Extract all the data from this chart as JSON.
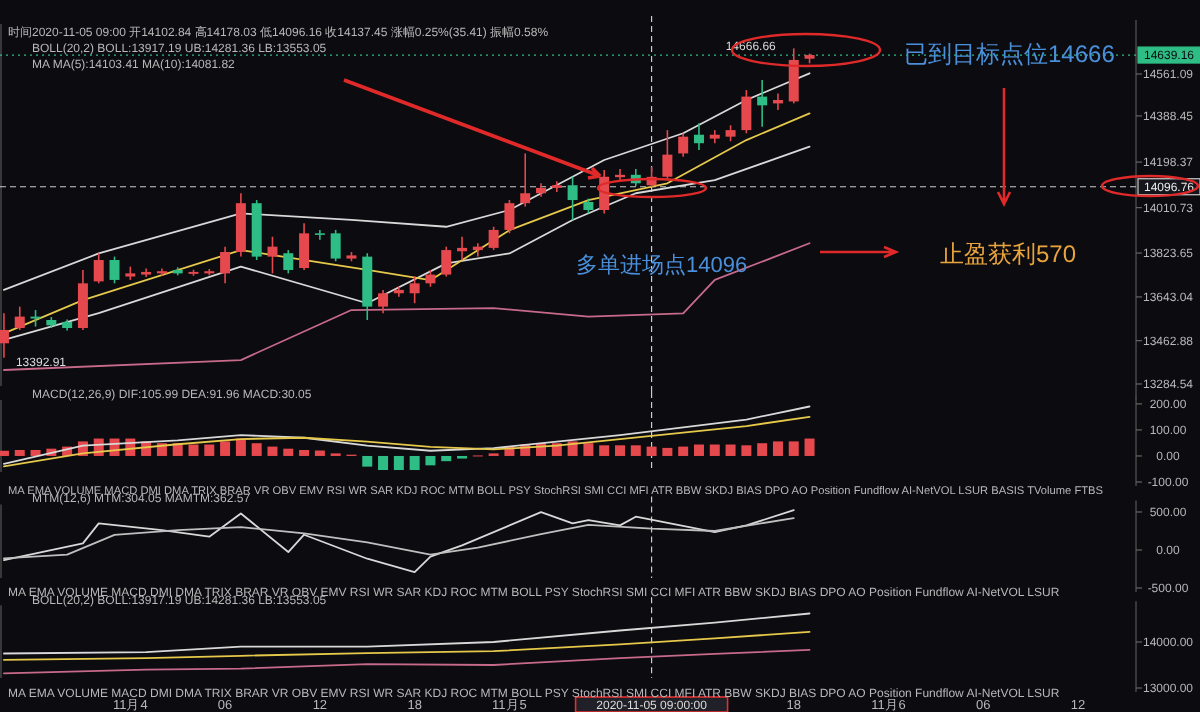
{
  "chart_data": [
    {
      "type": "candlestick",
      "tick_labels": "y",
      "grid": false,
      "x": [
        "2020-11-03T16:00",
        "2020-11-03T17:00",
        "2020-11-03T18:00",
        "2020-11-03T19:00",
        "2020-11-03T20:00",
        "2020-11-03T21:00",
        "2020-11-03T22:00",
        "2020-11-03T23:00",
        "2020-11-04T00:00",
        "2020-11-04T01:00",
        "2020-11-04T02:00",
        "2020-11-04T03:00",
        "2020-11-04T04:00",
        "2020-11-04T05:00",
        "2020-11-04T06:00",
        "2020-11-04T07:00",
        "2020-11-04T08:00",
        "2020-11-04T09:00",
        "2020-11-04T10:00",
        "2020-11-04T11:00",
        "2020-11-04T12:00",
        "2020-11-04T13:00",
        "2020-11-04T14:00",
        "2020-11-04T15:00",
        "2020-11-04T16:00",
        "2020-11-04T17:00",
        "2020-11-04T18:00",
        "2020-11-04T19:00",
        "2020-11-04T20:00",
        "2020-11-04T21:00",
        "2020-11-04T22:00",
        "2020-11-04T23:00",
        "2020-11-05T00:00",
        "2020-11-05T01:00",
        "2020-11-05T02:00",
        "2020-11-05T03:00",
        "2020-11-05T04:00",
        "2020-11-05T05:00",
        "2020-11-05T06:00",
        "2020-11-05T07:00",
        "2020-11-05T08:00",
        "2020-11-05T09:00",
        "2020-11-05T10:00",
        "2020-11-05T11:00",
        "2020-11-05T12:00",
        "2020-11-05T13:00",
        "2020-11-05T14:00",
        "2020-11-05T15:00",
        "2020-11-05T16:00",
        "2020-11-05T17:00",
        "2020-11-05T18:00",
        "2020-11-05T19:00"
      ],
      "ohlc": [
        [
          13452,
          13576,
          13392.91,
          13507
        ],
        [
          13515,
          13603,
          13507,
          13562
        ],
        [
          13562,
          13589,
          13521,
          13554
        ],
        [
          13548,
          13560,
          13515,
          13526
        ],
        [
          13540,
          13550,
          13505,
          13515
        ],
        [
          13515,
          13754,
          13507,
          13699
        ],
        [
          13707,
          13823,
          13699,
          13795
        ],
        [
          13795,
          13809,
          13699,
          13713
        ],
        [
          13727,
          13768,
          13713,
          13740
        ],
        [
          13735,
          13760,
          13725,
          13746
        ],
        [
          13740,
          13760,
          13730,
          13749
        ],
        [
          13754,
          13765,
          13732,
          13740
        ],
        [
          13738,
          13755,
          13730,
          13746
        ],
        [
          13740,
          13758,
          13732,
          13749
        ],
        [
          13740,
          13850,
          13699,
          13828
        ],
        [
          13828,
          14070,
          13809,
          14029
        ],
        [
          14029,
          14042,
          13795,
          13809
        ],
        [
          13809,
          13891,
          13740,
          13850
        ],
        [
          13823,
          13836,
          13740,
          13754
        ],
        [
          13762,
          13946,
          13754,
          13905
        ],
        [
          13905,
          13919,
          13878,
          13900
        ],
        [
          13905,
          13919,
          13790,
          13801
        ],
        [
          13801,
          13828,
          13790,
          13814
        ],
        [
          13809,
          13823,
          13548,
          13603
        ],
        [
          13603,
          13672,
          13576,
          13658
        ],
        [
          13658,
          13685,
          13644,
          13672
        ],
        [
          13658,
          13727,
          13617,
          13699
        ],
        [
          13699,
          13754,
          13685,
          13735
        ],
        [
          13735,
          13850,
          13727,
          13836
        ],
        [
          13831,
          13891,
          13795,
          13845
        ],
        [
          13836,
          13864,
          13809,
          13850
        ],
        [
          13845,
          13932,
          13836,
          13919
        ],
        [
          13919,
          14042,
          13905,
          14029
        ],
        [
          14029,
          14234,
          14015,
          14070
        ],
        [
          14070,
          14111,
          14056,
          14092
        ],
        [
          14092,
          14119,
          14075,
          14103
        ],
        [
          14103,
          14138,
          13960,
          14042
        ],
        [
          14034,
          14048,
          13987,
          14001
        ],
        [
          14001,
          14166,
          13987,
          14138
        ],
        [
          14136,
          14170,
          14120,
          14146
        ],
        [
          14146,
          14170,
          14100,
          14111
        ],
        [
          14102.84,
          14178.03,
          14096.16,
          14137.45
        ],
        [
          14138,
          14330,
          14125,
          14229
        ],
        [
          14234,
          14316,
          14220,
          14303
        ],
        [
          14311,
          14358,
          14248,
          14276
        ],
        [
          14295,
          14330,
          14276,
          14311
        ],
        [
          14303,
          14350,
          14284,
          14330
        ],
        [
          14330,
          14495,
          14317,
          14468
        ],
        [
          14468,
          14536,
          14344,
          14432
        ],
        [
          14440,
          14481,
          14413,
          14454
        ],
        [
          14448,
          14666.66,
          14440,
          14619
        ],
        [
          14624,
          14645,
          14605,
          14639.16
        ]
      ],
      "colors": [
        "#e5484d",
        "#e5484d",
        "#2ebd85",
        "#2ebd85",
        "#2ebd85",
        "#e5484d",
        "#e5484d",
        "#2ebd85",
        "#e5484d",
        "#e5484d",
        "#e5484d",
        "#2ebd85",
        "#e5484d",
        "#e5484d",
        "#e5484d",
        "#e5484d",
        "#2ebd85",
        "#e5484d",
        "#2ebd85",
        "#e5484d",
        "#2ebd85",
        "#2ebd85",
        "#e5484d",
        "#2ebd85",
        "#e5484d",
        "#e5484d",
        "#e5484d",
        "#e5484d",
        "#e5484d",
        "#e5484d",
        "#e5484d",
        "#e5484d",
        "#e5484d",
        "#e5484d",
        "#e5484d",
        "#e5484d",
        "#2ebd85",
        "#2ebd85",
        "#e5484d",
        "#e5484d",
        "#2ebd85",
        "#e5484d",
        "#e5484d",
        "#e5484d",
        "#2ebd85",
        "#e5484d",
        "#e5484d",
        "#e5484d",
        "#2ebd85",
        "#e5484d",
        "#e5484d",
        "#e5484d"
      ],
      "series": [
        {
          "type": "line",
          "color": "#d8d8d8",
          "x": [
            "2020-11-03T16:00",
            "2020-11-03T22:00",
            "2020-11-04T07:00",
            "2020-11-04T14:00",
            "2020-11-04T20:00",
            "2020-11-05T00:00",
            "2020-11-05T04:00",
            "2020-11-05T06:00",
            "2020-11-05T11:00",
            "2020-11-05T15:00",
            "2020-11-05T19:00"
          ],
          "values": [
            13672,
            13822,
            13987,
            13960,
            13932,
            14001,
            14138,
            14207,
            14317,
            14454,
            14564
          ]
        },
        {
          "type": "line",
          "color": "#d8d8d8",
          "x": [
            "2020-11-03T16:00",
            "2020-11-03T22:00",
            "2020-11-04T07:00",
            "2020-11-04T15:00",
            "2020-11-04T20:00",
            "2020-11-05T00:00",
            "2020-11-05T04:00",
            "2020-11-05T08:00",
            "2020-11-05T13:00",
            "2020-11-05T19:00"
          ],
          "values": [
            13466,
            13576,
            13768,
            13617,
            13781,
            13822,
            13960,
            14070,
            14124,
            14262
          ]
        },
        {
          "type": "line",
          "color": "#e6c84a",
          "x": [
            "2020-11-03T16:00",
            "2020-11-03T21:00",
            "2020-11-04T07:00",
            "2020-11-04T15:00",
            "2020-11-04T19:00",
            "2020-11-05T00:00",
            "2020-11-05T05:00",
            "2020-11-05T10:00",
            "2020-11-05T15:00",
            "2020-11-05T19:00"
          ],
          "values": [
            13493,
            13630,
            13836,
            13754,
            13712,
            13918,
            14042,
            14111,
            14289,
            14399
          ]
        },
        {
          "type": "line",
          "color": "#c86a8a",
          "x": [
            "2020-11-03T16:00",
            "2020-11-04T07:00",
            "2020-11-04T14:00",
            "2020-11-04T23:00",
            "2020-11-05T05:00",
            "2020-11-05T11:00",
            "2020-11-05T13:00",
            "2020-11-05T19:00"
          ],
          "values": [
            13342,
            13383,
            13589,
            13597,
            13562,
            13575,
            13713,
            13864
          ]
        }
      ],
      "xlim": [
        "2020-11-03T15:45",
        "2020-11-06T15:40"
      ],
      "ylim": [
        13235,
        14767
      ],
      "yticks": [
        13284.54,
        13462.88,
        13643.04,
        13823.65,
        14010.73,
        14198.37,
        14388.45,
        14561.09
      ],
      "ref_lines": [
        {
          "axis": "y",
          "value": 14639.16,
          "label": "14639.16",
          "color": "#2ebd85",
          "line_style": "dotted"
        },
        {
          "axis": "y",
          "value": 14096.76,
          "label": "14096.76",
          "color": "#cccccc",
          "line_style": "dashed"
        },
        {
          "axis": "x",
          "value": "2020-11-05T09:00",
          "color": "#cccccc",
          "line_style": "dashed"
        }
      ],
      "annotations": [
        "时间2020-11-05 09:00 开14102.84 高14178.03 低14096.16 收14137.45 涨幅0.25%(35.41) 振幅0.58%",
        "BOLL(20,2) BOLL:13917.19 UB:14281.36 LB:13553.05",
        "MA MA(5):14103.41 MA(10):14081.82",
        {
          "text": "14666.66",
          "x": "2020-11-05T18:00",
          "y": 14666.66
        },
        {
          "text": "13392.91",
          "x": "2020-11-03T16:00",
          "y": 13392.91
        },
        "已到目标点位14666",
        "多单进场点14096",
        "止盈获利570"
      ]
    },
    {
      "type": "bar",
      "tick_labels": "y",
      "grid": false,
      "x": [
        "2020-11-03T16:00",
        "2020-11-03T17:00",
        "2020-11-03T18:00",
        "2020-11-03T19:00",
        "2020-11-03T20:00",
        "2020-11-03T21:00",
        "2020-11-03T22:00",
        "2020-11-03T23:00",
        "2020-11-04T00:00",
        "2020-11-04T01:00",
        "2020-11-04T02:00",
        "2020-11-04T03:00",
        "2020-11-04T04:00",
        "2020-11-04T05:00",
        "2020-11-04T06:00",
        "2020-11-04T07:00",
        "2020-11-04T08:00",
        "2020-11-04T09:00",
        "2020-11-04T10:00",
        "2020-11-04T11:00",
        "2020-11-04T12:00",
        "2020-11-04T13:00",
        "2020-11-04T14:00",
        "2020-11-04T15:00",
        "2020-11-04T16:00",
        "2020-11-04T17:00",
        "2020-11-04T18:00",
        "2020-11-04T19:00",
        "2020-11-04T20:00",
        "2020-11-04T21:00",
        "2020-11-04T22:00",
        "2020-11-04T23:00",
        "2020-11-05T00:00",
        "2020-11-05T01:00",
        "2020-11-05T02:00",
        "2020-11-05T03:00",
        "2020-11-05T04:00",
        "2020-11-05T05:00",
        "2020-11-05T06:00",
        "2020-11-05T07:00",
        "2020-11-05T08:00",
        "2020-11-05T09:00",
        "2020-11-05T10:00",
        "2020-11-05T11:00",
        "2020-11-05T12:00",
        "2020-11-05T13:00",
        "2020-11-05T14:00",
        "2020-11-05T15:00",
        "2020-11-05T16:00",
        "2020-11-05T17:00",
        "2020-11-05T18:00",
        "2020-11-05T19:00"
      ],
      "values": [
        20,
        23,
        23,
        28,
        36,
        56,
        67,
        67,
        67,
        56,
        49,
        49,
        44,
        44,
        56,
        67,
        49,
        36,
        28,
        23,
        21,
        10,
        5,
        -41,
        -54,
        -54,
        -54,
        -36,
        -20,
        -10,
        2,
        10,
        36,
        44,
        49,
        49,
        56,
        49,
        41,
        41,
        41,
        36,
        31,
        36,
        44,
        44,
        44,
        41,
        49,
        56,
        56,
        67
      ],
      "colors": [
        "#e5484d",
        "#e5484d",
        "#e5484d",
        "#e5484d",
        "#e5484d",
        "#e5484d",
        "#e5484d",
        "#e5484d",
        "#e5484d",
        "#e5484d",
        "#e5484d",
        "#e5484d",
        "#e5484d",
        "#e5484d",
        "#e5484d",
        "#e5484d",
        "#e5484d",
        "#e5484d",
        "#e5484d",
        "#e5484d",
        "#e5484d",
        "#e5484d",
        "#e5484d",
        "#2ebd85",
        "#2ebd85",
        "#2ebd85",
        "#2ebd85",
        "#2ebd85",
        "#2ebd85",
        "#2ebd85",
        "#e5484d",
        "#e5484d",
        "#e5484d",
        "#e5484d",
        "#e5484d",
        "#e5484d",
        "#e5484d",
        "#e5484d",
        "#e5484d",
        "#e5484d",
        "#e5484d",
        "#e5484d",
        "#e5484d",
        "#e5484d",
        "#e5484d",
        "#e5484d",
        "#e5484d",
        "#e5484d",
        "#e5484d",
        "#e5484d",
        "#e5484d",
        "#e5484d"
      ],
      "series": [
        {
          "type": "line",
          "color": "#d8d8d8",
          "x": [
            "2020-11-03T16:00",
            "2020-11-03T21:00",
            "2020-11-04T03:00",
            "2020-11-04T07:00",
            "2020-11-04T11:00",
            "2020-11-04T15:00",
            "2020-11-04T19:00",
            "2020-11-04T23:00",
            "2020-11-05T03:00",
            "2020-11-05T07:00",
            "2020-11-05T11:00",
            "2020-11-05T15:00",
            "2020-11-05T19:00"
          ],
          "values": [
            -30,
            40,
            60,
            80,
            70,
            40,
            20,
            30,
            55,
            80,
            110,
            140,
            190
          ]
        },
        {
          "type": "line",
          "color": "#e6c84a",
          "x": [
            "2020-11-03T16:00",
            "2020-11-03T21:00",
            "2020-11-04T03:00",
            "2020-11-04T07:00",
            "2020-11-04T11:00",
            "2020-11-04T15:00",
            "2020-11-04T19:00",
            "2020-11-04T23:00",
            "2020-11-05T03:00",
            "2020-11-05T07:00",
            "2020-11-05T11:00",
            "2020-11-05T15:00",
            "2020-11-05T19:00"
          ],
          "values": [
            -40,
            10,
            45,
            65,
            70,
            55,
            35,
            25,
            40,
            65,
            90,
            115,
            150
          ]
        }
      ],
      "xlim": [
        "2020-11-03T15:45",
        "2020-11-06T15:40"
      ],
      "ylim": [
        -100,
        215
      ],
      "yticks": [
        {
          "value": 200,
          "label": "200.00"
        },
        {
          "value": 100,
          "label": "100.00"
        },
        {
          "value": 0,
          "label": "0.00"
        },
        {
          "value": -100,
          "label": "-100.00"
        }
      ],
      "ref_lines": [
        {
          "axis": "x",
          "value": "2020-11-05T09:00",
          "color": "#cccccc",
          "line_style": "dashed"
        }
      ],
      "annotations": [
        "MACD(12,26,9) DIF:105.99 DEA:91.96 MACD:30.05",
        "MA EMA VOLUME MACD DMI DMA TRIX BRAR VR OBV EMV RSI WR SAR KDJ ROC MTM BOLL PSY StochRSI SMI CCI MFI ATR BBW SKDJ BIAS DPO AO Position Fundflow AI-NetVOL LSUR BASIS TVolume FTBS"
      ]
    },
    {
      "type": "line",
      "tick_labels": "y",
      "grid": false,
      "series": [
        {
          "color": "#d8d8d8",
          "x": [
            "2020-11-03T16:00",
            "2020-11-03T21:00",
            "2020-11-03T22:00",
            "2020-11-04T02:00",
            "2020-11-04T05:00",
            "2020-11-04T07:00",
            "2020-11-04T10:00",
            "2020-11-04T11:00",
            "2020-11-04T15:00",
            "2020-11-04T18:00",
            "2020-11-04T19:00",
            "2020-11-04T21:00",
            "2020-11-05T02:00",
            "2020-11-05T04:00",
            "2020-11-05T05:00",
            "2020-11-05T07:00",
            "2020-11-05T08:00",
            "2020-11-05T13:00",
            "2020-11-05T15:00",
            "2020-11-05T18:00"
          ],
          "values": [
            -132,
            87,
            350,
            262,
            175,
            481,
            -27,
            201,
            -115,
            -290,
            -88,
            60,
            499,
            350,
            394,
            324,
            438,
            236,
            324,
            525
          ]
        },
        {
          "color": "#bfbfbf",
          "x": [
            "2020-11-03T16:00",
            "2020-11-03T20:00",
            "2020-11-03T23:00",
            "2020-11-04T03:00",
            "2020-11-04T07:00",
            "2020-11-04T11:00",
            "2020-11-04T15:00",
            "2020-11-04T19:00",
            "2020-11-04T22:00",
            "2020-11-05T02:00",
            "2020-11-05T05:00",
            "2020-11-05T09:00",
            "2020-11-05T13:00",
            "2020-11-05T18:00"
          ],
          "values": [
            -110,
            -60,
            200,
            262,
            300,
            220,
            100,
            -60,
            30,
            210,
            330,
            280,
            250,
            420
          ]
        }
      ],
      "xlim": [
        "2020-11-03T15:45",
        "2020-11-06T15:40"
      ],
      "ylim": [
        -500,
        600
      ],
      "yticks": [
        {
          "value": 500,
          "label": "500.00"
        },
        {
          "value": 0,
          "label": "0.00"
        },
        {
          "value": -500,
          "label": "-500.00"
        }
      ],
      "ref_lines": [
        {
          "axis": "x",
          "value": "2020-11-05T09:00",
          "color": "#cccccc",
          "line_style": "dashed"
        }
      ],
      "annotations": [
        "MTM(12,6) MTM:304.05 MAMTM:362.57",
        "MA EMA VOLUME MACD DMI DMA TRIX BRAR VR OBV EMV RSI WR SAR KDJ ROC MTM BOLL PSY StochRSI SMI CCI MFI ATR BBW SKDJ BIAS DPO AO Position Fundflow AI-NetVOL LSUR"
      ]
    },
    {
      "type": "line",
      "grid": false,
      "series": [
        {
          "color": "#d8d8d8",
          "x": [
            "2020-11-03T16:00",
            "2020-11-04T01:00",
            "2020-11-04T07:00",
            "2020-11-04T15:00",
            "2020-11-04T23:00",
            "2020-11-05T07:00",
            "2020-11-05T13:00",
            "2020-11-05T19:00"
          ],
          "values": [
            13750,
            13780,
            13900,
            13900,
            14000,
            14250,
            14420,
            14620
          ]
        },
        {
          "color": "#e6c84a",
          "x": [
            "2020-11-03T16:00",
            "2020-11-04T01:00",
            "2020-11-04T07:00",
            "2020-11-04T15:00",
            "2020-11-04T23:00",
            "2020-11-05T07:00",
            "2020-11-05T13:00",
            "2020-11-05T19:00"
          ],
          "values": [
            13610,
            13650,
            13700,
            13760,
            13800,
            13950,
            14080,
            14220
          ]
        },
        {
          "color": "#c86a8a",
          "x": [
            "2020-11-03T16:00",
            "2020-11-04T01:00",
            "2020-11-04T07:00",
            "2020-11-04T15:00",
            "2020-11-04T23:00",
            "2020-11-05T07:00",
            "2020-11-05T13:00",
            "2020-11-05T19:00"
          ],
          "values": [
            13320,
            13400,
            13420,
            13520,
            13500,
            13650,
            13740,
            13830
          ]
        }
      ],
      "xlim": [
        "2020-11-03T15:45",
        "2020-11-06T15:40"
      ],
      "ylim": [
        13000,
        14800
      ],
      "yticks": [
        {
          "value": 14000,
          "label": "14000.00"
        },
        {
          "value": 13000,
          "label": "13000.00"
        }
      ],
      "xticks": [
        {
          "value": "2020-11-04T00:00",
          "label": "11月4"
        },
        {
          "value": "2020-11-04T06:00",
          "label": "06"
        },
        {
          "value": "2020-11-04T12:00",
          "label": "12"
        },
        {
          "value": "2020-11-04T18:00",
          "label": "18"
        },
        {
          "value": "2020-11-05T00:00",
          "label": "11月5"
        },
        {
          "value": "2020-11-05T18:00",
          "label": "18"
        },
        {
          "value": "2020-11-06T00:00",
          "label": "11月6"
        },
        {
          "value": "2020-11-06T06:00",
          "label": "06"
        },
        {
          "value": "2020-11-06T12:00",
          "label": "12"
        }
      ],
      "ref_lines": [
        {
          "axis": "x",
          "value": "2020-11-05T09:00",
          "label": "2020-11-05 09:00:00",
          "color": "#cccccc",
          "line_style": "dashed"
        }
      ],
      "annotations": [
        "BOLL(20,2) BOLL:13917.19 UB:14281.36 LB:13553.05",
        "MA EMA VOLUME MACD DMI DMA TRIX BRAR VR OBV EMV RSI WR SAR KDJ ROC MTM BOLL PSY StochRSI SMI CCI MFI ATR BBW SKDJ BIAS DPO AO Position Fundflow AI-NetVOL LSUR"
      ]
    }
  ]
}
